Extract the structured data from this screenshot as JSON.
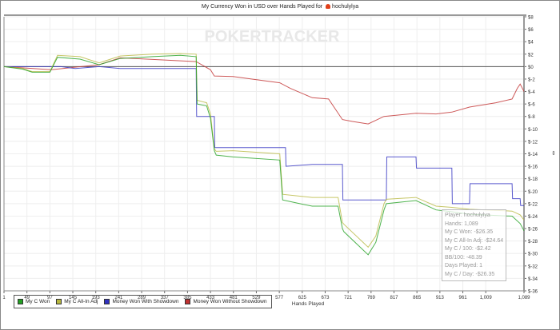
{
  "chart_data": {
    "type": "line",
    "title": "My Currency Won in USD over Hands Played for",
    "player": "hochulylya",
    "watermark": "POKERTRACKER",
    "xlabel": "Hands Played",
    "ylabel": "",
    "xlim": [
      1,
      1089
    ],
    "ylim": [
      -36,
      8
    ],
    "x_ticks": [
      1,
      49,
      97,
      145,
      193,
      241,
      289,
      337,
      385,
      433,
      481,
      529,
      577,
      625,
      673,
      721,
      769,
      817,
      865,
      913,
      961,
      1009,
      1089
    ],
    "x_tick_labels": [
      "1",
      "49",
      "97",
      "145",
      "193",
      "241",
      "289",
      "337",
      "385",
      "433",
      "481",
      "529",
      "577",
      "625",
      "673",
      "721",
      "769",
      "817",
      "865",
      "913",
      "961",
      "1,009",
      "1,089"
    ],
    "y_ticks": [
      8,
      6,
      4,
      2,
      0,
      -2,
      -4,
      -6,
      -8,
      -10,
      -12,
      -14,
      -16,
      -18,
      -20,
      -22,
      -24,
      -26,
      -28,
      -30,
      -32,
      -34,
      -36
    ],
    "y_tick_labels": [
      "$8",
      "$6",
      "$4",
      "$2",
      "$0",
      "$-2",
      "$-4",
      "$-6",
      "$-8",
      "$-10",
      "$-12",
      "$-14",
      "$-16",
      "$-18",
      "$-20",
      "$-22",
      "$-24",
      "$-26",
      "$-28",
      "$-30",
      "$-32",
      "$-34",
      "$-36"
    ],
    "grid": true,
    "legend_position": "bottom-left",
    "series": [
      {
        "name": "My C Won",
        "color": "#22a022",
        "x": [
          1,
          40,
          60,
          97,
          113,
          160,
          200,
          244,
          311,
          370,
          403,
          405,
          425,
          433,
          441,
          445,
          480,
          578,
          584,
          620,
          646,
          700,
          709,
          712,
          763,
          779,
          796,
          801,
          863,
          905,
          938,
          975,
          1064,
          1081,
          1089
        ],
        "y": [
          0,
          -0.4,
          -0.9,
          -0.9,
          1.5,
          1.2,
          0.3,
          1.3,
          1.6,
          1.8,
          1.6,
          -6,
          -6.3,
          -8.3,
          -13.5,
          -14.2,
          -14.5,
          -15,
          -21.4,
          -22,
          -22.4,
          -22.4,
          -26,
          -26.5,
          -30.2,
          -28.2,
          -23,
          -22,
          -21.5,
          -23,
          -23.3,
          -23.7,
          -24,
          -25.2,
          -26.35
        ]
      },
      {
        "name": "My C All-In Adj",
        "color": "#b8b840",
        "x": [
          1,
          40,
          60,
          97,
          113,
          160,
          200,
          244,
          311,
          370,
          403,
          405,
          425,
          433,
          441,
          445,
          480,
          578,
          584,
          620,
          646,
          700,
          709,
          712,
          763,
          779,
          796,
          801,
          863,
          905,
          938,
          975,
          1064,
          1081,
          1089
        ],
        "y": [
          0,
          -0.3,
          -0.8,
          -0.8,
          1.8,
          1.6,
          0.6,
          1.7,
          2.0,
          2.1,
          2.0,
          -5.4,
          -5.8,
          -7.6,
          -13.2,
          -13.6,
          -13.5,
          -14,
          -20.5,
          -20.8,
          -21,
          -21,
          -25,
          -25.3,
          -29,
          -27.2,
          -22,
          -21.3,
          -21,
          -22.4,
          -22.6,
          -22.9,
          -23.2,
          -23.8,
          -24.64
        ]
      },
      {
        "name": "Money Won With Showdown",
        "color": "#3030c0",
        "x": [
          1,
          120,
          150,
          200,
          244,
          403,
          404,
          433,
          441,
          442,
          578,
          590,
          591,
          646,
          709,
          710,
          796,
          801,
          802,
          863,
          864,
          938,
          939,
          975,
          976,
          1064,
          1065,
          1081,
          1082,
          1089
        ],
        "y": [
          0,
          0,
          -0.3,
          0,
          -0.3,
          -0.3,
          -8,
          -8,
          -8,
          -13,
          -13,
          -13,
          -16,
          -15.7,
          -15.7,
          -21.4,
          -21.4,
          -21.4,
          -14.5,
          -14.5,
          -16.3,
          -16.3,
          -22,
          -22,
          -18.8,
          -18.8,
          -21.2,
          -21.2,
          -22.3,
          -22.3
        ]
      },
      {
        "name": "Money Won Without Showdown",
        "color": "#c03030",
        "x": [
          1,
          100,
          200,
          244,
          300,
          403,
          433,
          441,
          480,
          520,
          578,
          600,
          646,
          680,
          709,
          730,
          763,
          796,
          863,
          905,
          938,
          975,
          1030,
          1064,
          1075,
          1081,
          1089
        ],
        "y": [
          0,
          -0.5,
          0.3,
          1.4,
          1.2,
          0.8,
          -0.5,
          -1.5,
          -1.6,
          -2.0,
          -2.6,
          -3.5,
          -5,
          -5.2,
          -8.5,
          -8.8,
          -9.2,
          -8,
          -7.5,
          -7.6,
          -7.3,
          -6.5,
          -5.8,
          -5.2,
          -3.5,
          -2.8,
          -4.0
        ]
      }
    ],
    "tooltip": [
      "Player: hochulylya",
      "Hands: 1,089",
      "My C Won: -$26.35",
      "My C All-In Adj: -$24.64",
      "My C / 100: -$2.42",
      "BB/100: -48.39",
      "Days Played: 1",
      "My C / Day: -$26.35"
    ]
  }
}
